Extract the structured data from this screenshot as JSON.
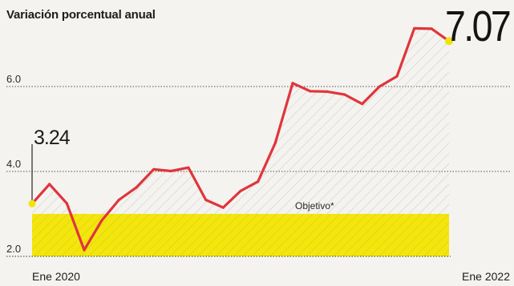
{
  "header": {
    "subtitle": "Variación porcentual anual"
  },
  "annotations": {
    "latest_value": "7.07",
    "first_value": "3.24",
    "target_label": "Objetivo*"
  },
  "colors": {
    "line": "#e0353c",
    "target_band": "#f3e60f",
    "endpoint": "#f3e20a",
    "background": "#f4f3ef"
  },
  "chart_data": {
    "type": "line",
    "title": "",
    "subtitle": "Variación porcentual anual",
    "xlabel": "",
    "ylabel": "",
    "ylim": [
      2.0,
      7.6
    ],
    "y_ticks": [
      "2.0",
      "4.0",
      "6.0"
    ],
    "x_tick_labels": [
      "Ene 2020",
      "Ene 2022"
    ],
    "x": [
      "2020-01",
      "2020-02",
      "2020-03",
      "2020-04",
      "2020-05",
      "2020-06",
      "2020-07",
      "2020-08",
      "2020-09",
      "2020-10",
      "2020-11",
      "2020-12",
      "2021-01",
      "2021-02",
      "2021-03",
      "2021-04",
      "2021-05",
      "2021-06",
      "2021-07",
      "2021-08",
      "2021-09",
      "2021-10",
      "2021-11",
      "2021-12",
      "2022-01"
    ],
    "series": [
      {
        "values": [
          3.24,
          3.7,
          3.25,
          2.15,
          2.84,
          3.33,
          3.62,
          4.05,
          4.01,
          4.09,
          3.33,
          3.15,
          3.54,
          3.76,
          4.67,
          6.08,
          5.89,
          5.88,
          5.81,
          5.59,
          6.0,
          6.24,
          7.37,
          7.36,
          7.07
        ]
      }
    ],
    "target_band": {
      "label": "Objetivo*",
      "from": 2.0,
      "to": 3.0
    },
    "grid": true,
    "legend": "none"
  }
}
